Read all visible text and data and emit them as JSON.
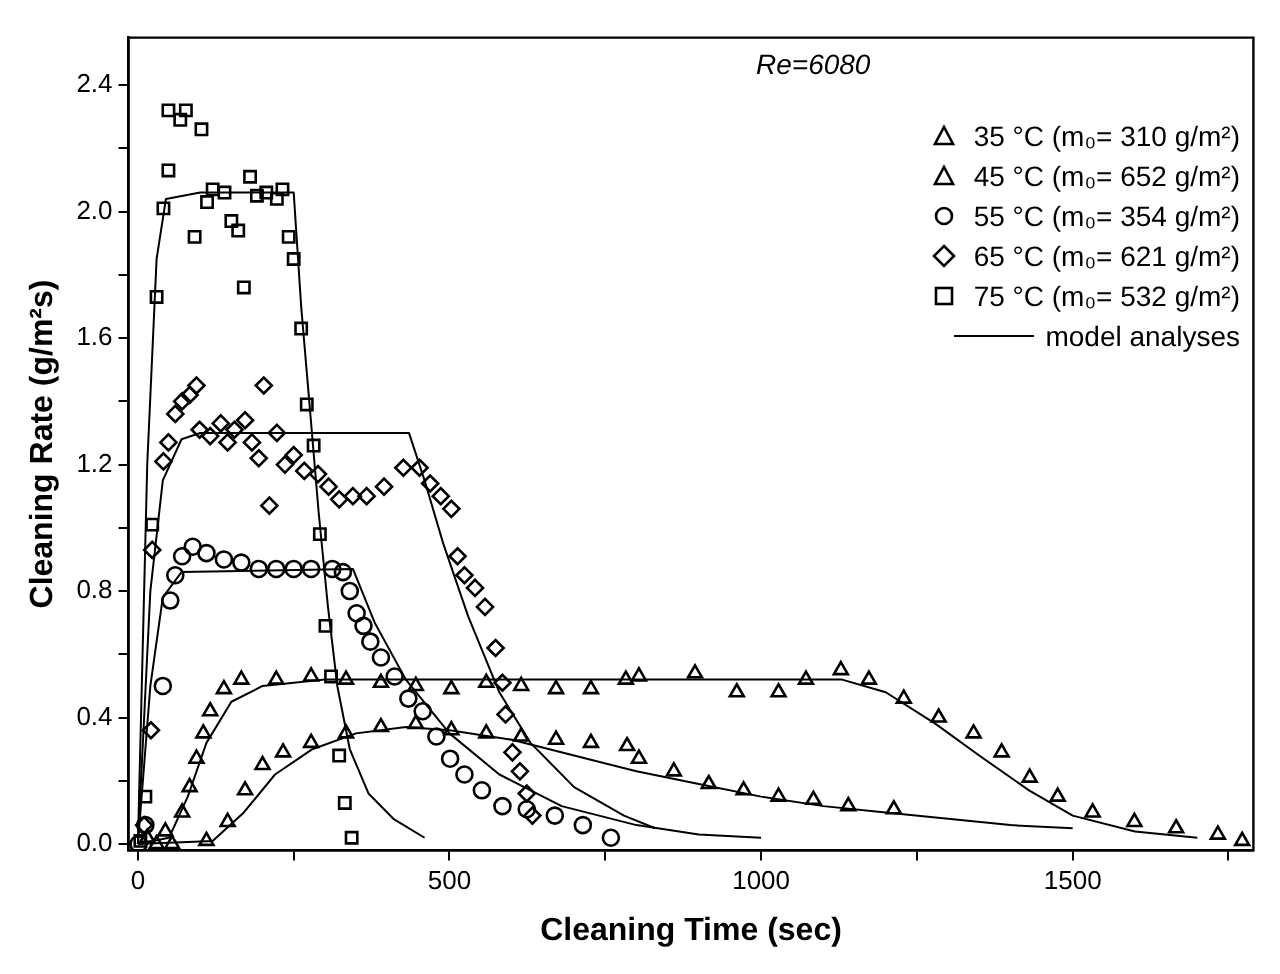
{
  "chart_data": {
    "type": "scatter",
    "xlabel": "Cleaning Time (sec)",
    "ylabel": "Cleaning Rate (g/m²s)",
    "annotations": [
      "Re=6080"
    ],
    "xlim": [
      -15,
      1790
    ],
    "ylim": [
      -0.02,
      2.55
    ],
    "xticks": [
      0,
      {
        "value": 250,
        "label": null
      },
      500,
      {
        "value": 750,
        "label": null
      },
      1000,
      {
        "value": 1250,
        "label": null
      },
      1500,
      {
        "value": 1750,
        "label": null
      }
    ],
    "yticks": [
      {
        "value": 0,
        "label": "0.0"
      },
      {
        "value": 0.2,
        "label": null
      },
      {
        "value": 0.4,
        "label": "0.4"
      },
      {
        "value": 0.6,
        "label": null
      },
      {
        "value": 0.8,
        "label": "0.8"
      },
      {
        "value": 1.0,
        "label": null
      },
      {
        "value": 1.2,
        "label": "1.2"
      },
      {
        "value": 1.4,
        "label": null
      },
      {
        "value": 1.6,
        "label": "1.6"
      },
      {
        "value": 1.8,
        "label": null
      },
      {
        "value": 2.0,
        "label": "2.0"
      },
      {
        "value": 2.2,
        "label": null
      },
      {
        "value": 2.4,
        "label": "2.4"
      }
    ],
    "grid": false,
    "legend": "top right",
    "series": [
      {
        "name": "35 °C (m₀= 310 g/m²)",
        "type": "scatter",
        "color": "#000000",
        "marker": "triangle",
        "x": [
          30,
          55,
          110,
          144,
          172,
          200,
          233,
          278,
          334,
          390,
          446,
          503,
          559,
          615,
          671,
          727,
          785,
          804,
          860,
          916,
          972,
          1028,
          1084,
          1140,
          1213
        ],
        "values": [
          0,
          0,
          0.01,
          0.07,
          0.17,
          0.25,
          0.29,
          0.32,
          0.35,
          0.37,
          0.38,
          0.36,
          0.35,
          0.34,
          0.33,
          0.32,
          0.31,
          0.27,
          0.23,
          0.19,
          0.17,
          0.15,
          0.14,
          0.12,
          0.11
        ]
      },
      {
        "name": "45 °C (m₀= 652 g/m²)",
        "type": "scatter",
        "color": "#000000",
        "marker": "triangle",
        "x": [
          15,
          44,
          71,
          83,
          94,
          105,
          116,
          138,
          166,
          222,
          278,
          334,
          390,
          446,
          503,
          559,
          615,
          671,
          727,
          783,
          804,
          894,
          961,
          1028,
          1072,
          1128,
          1173,
          1229,
          1285,
          1341,
          1386,
          1431,
          1476,
          1532,
          1599,
          1666,
          1733,
          1772
        ],
        "values": [
          0.02,
          0.04,
          0.1,
          0.18,
          0.27,
          0.35,
          0.42,
          0.49,
          0.52,
          0.52,
          0.53,
          0.52,
          0.51,
          0.5,
          0.49,
          0.51,
          0.5,
          0.49,
          0.49,
          0.52,
          0.53,
          0.54,
          0.48,
          0.48,
          0.52,
          0.55,
          0.52,
          0.46,
          0.4,
          0.35,
          0.29,
          0.21,
          0.15,
          0.1,
          0.07,
          0.05,
          0.03,
          0.01
        ]
      },
      {
        "name": "55 °C (m₀= 354 g/m²)",
        "type": "scatter",
        "color": "#000000",
        "marker": "circle",
        "x": [
          1,
          12,
          40,
          52,
          60,
          71,
          88,
          110,
          138,
          166,
          194,
          222,
          250,
          278,
          312,
          329,
          340,
          351,
          362,
          373,
          390,
          412,
          434,
          457,
          479,
          501,
          524,
          552,
          585,
          624,
          669,
          714,
          759
        ],
        "values": [
          0,
          0.06,
          0.5,
          0.77,
          0.85,
          0.91,
          0.94,
          0.92,
          0.9,
          0.89,
          0.87,
          0.87,
          0.87,
          0.87,
          0.87,
          0.86,
          0.8,
          0.73,
          0.69,
          0.64,
          0.59,
          0.53,
          0.46,
          0.42,
          0.34,
          0.27,
          0.22,
          0.17,
          0.12,
          0.11,
          0.09,
          0.06,
          0.02
        ]
      },
      {
        "name": "65 °C (m₀= 621 g/m²)",
        "type": "scatter",
        "color": "#000000",
        "marker": "diamond",
        "x": [
          10,
          21,
          23,
          41,
          49,
          60,
          71,
          83,
          94,
          99,
          116,
          133,
          144,
          155,
          172,
          183,
          194,
          202,
          211,
          223,
          236,
          250,
          267,
          289,
          306,
          323,
          345,
          367,
          395,
          426,
          452,
          469,
          486,
          503,
          513,
          524,
          541,
          557,
          574,
          585,
          590,
          601,
          613,
          624,
          633
        ],
        "values": [
          0.06,
          0.36,
          0.93,
          1.21,
          1.27,
          1.36,
          1.4,
          1.42,
          1.45,
          1.31,
          1.29,
          1.33,
          1.27,
          1.31,
          1.34,
          1.27,
          1.22,
          1.45,
          1.07,
          1.3,
          1.2,
          1.23,
          1.18,
          1.17,
          1.13,
          1.09,
          1.1,
          1.1,
          1.13,
          1.19,
          1.19,
          1.14,
          1.1,
          1.06,
          0.91,
          0.85,
          0.81,
          0.75,
          0.62,
          0.51,
          0.41,
          0.29,
          0.23,
          0.16,
          0.09
        ]
      },
      {
        "name": "75 °C (m₀= 532 g/m²)",
        "type": "scatter",
        "color": "#000000",
        "marker": "square",
        "x": [
          4,
          12,
          23,
          30,
          41,
          49,
          49,
          68,
          77,
          91,
          102,
          111,
          120,
          139,
          150,
          161,
          170,
          180,
          191,
          206,
          223,
          232,
          242,
          250,
          262,
          271,
          282,
          292,
          301,
          310,
          323,
          332,
          343
        ],
        "values": [
          0.01,
          0.15,
          1.01,
          1.73,
          2.01,
          2.32,
          2.13,
          2.29,
          2.32,
          1.92,
          2.26,
          2.03,
          2.07,
          2.06,
          1.97,
          1.94,
          1.76,
          2.11,
          2.05,
          2.06,
          2.04,
          2.07,
          1.92,
          1.85,
          1.63,
          1.39,
          1.26,
          0.98,
          0.69,
          0.53,
          0.28,
          0.13,
          0.02
        ]
      },
      {
        "name": "model analyses",
        "type": "line",
        "color": "#000000",
        "marker": "none",
        "x": [
          0,
          15,
          30,
          45,
          100,
          250,
          262,
          275,
          290,
          305,
          320,
          340,
          370,
          410,
          460
        ],
        "values": [
          0,
          1.2,
          1.85,
          2.04,
          2.06,
          2.06,
          1.7,
          1.4,
          1.05,
          0.75,
          0.5,
          0.3,
          0.16,
          0.08,
          0.02
        ]
      },
      {
        "type": "line",
        "color": "#000000",
        "marker": "none",
        "x": [
          0,
          20,
          40,
          70,
          100,
          435,
          460,
          490,
          530,
          580,
          630,
          700,
          780,
          830
        ],
        "values": [
          0,
          0.8,
          1.15,
          1.28,
          1.3,
          1.3,
          1.15,
          0.95,
          0.72,
          0.48,
          0.32,
          0.18,
          0.09,
          0.05
        ]
      },
      {
        "type": "line",
        "color": "#000000",
        "marker": "none",
        "x": [
          0,
          20,
          40,
          70,
          345,
          380,
          430,
          500,
          580,
          680,
          800,
          900,
          1000
        ],
        "values": [
          0,
          0.5,
          0.78,
          0.86,
          0.87,
          0.7,
          0.52,
          0.35,
          0.22,
          0.12,
          0.06,
          0.03,
          0.02
        ]
      },
      {
        "type": "line",
        "color": "#000000",
        "marker": "none",
        "x": [
          0,
          50,
          80,
          110,
          150,
          200,
          300,
          1130,
          1200,
          1280,
          1350,
          1430,
          1500,
          1600,
          1700
        ],
        "values": [
          0,
          0.02,
          0.15,
          0.32,
          0.45,
          0.5,
          0.52,
          0.52,
          0.48,
          0.38,
          0.28,
          0.17,
          0.09,
          0.04,
          0.02
        ]
      },
      {
        "type": "line",
        "color": "#000000",
        "marker": "none",
        "x": [
          0,
          120,
          170,
          220,
          280,
          350,
          430,
          500,
          600,
          700,
          800,
          900,
          1000,
          1100,
          1200,
          1300,
          1400,
          1500
        ],
        "values": [
          0,
          0.01,
          0.1,
          0.22,
          0.3,
          0.35,
          0.37,
          0.36,
          0.33,
          0.28,
          0.23,
          0.19,
          0.15,
          0.12,
          0.1,
          0.08,
          0.06,
          0.05
        ]
      }
    ]
  }
}
